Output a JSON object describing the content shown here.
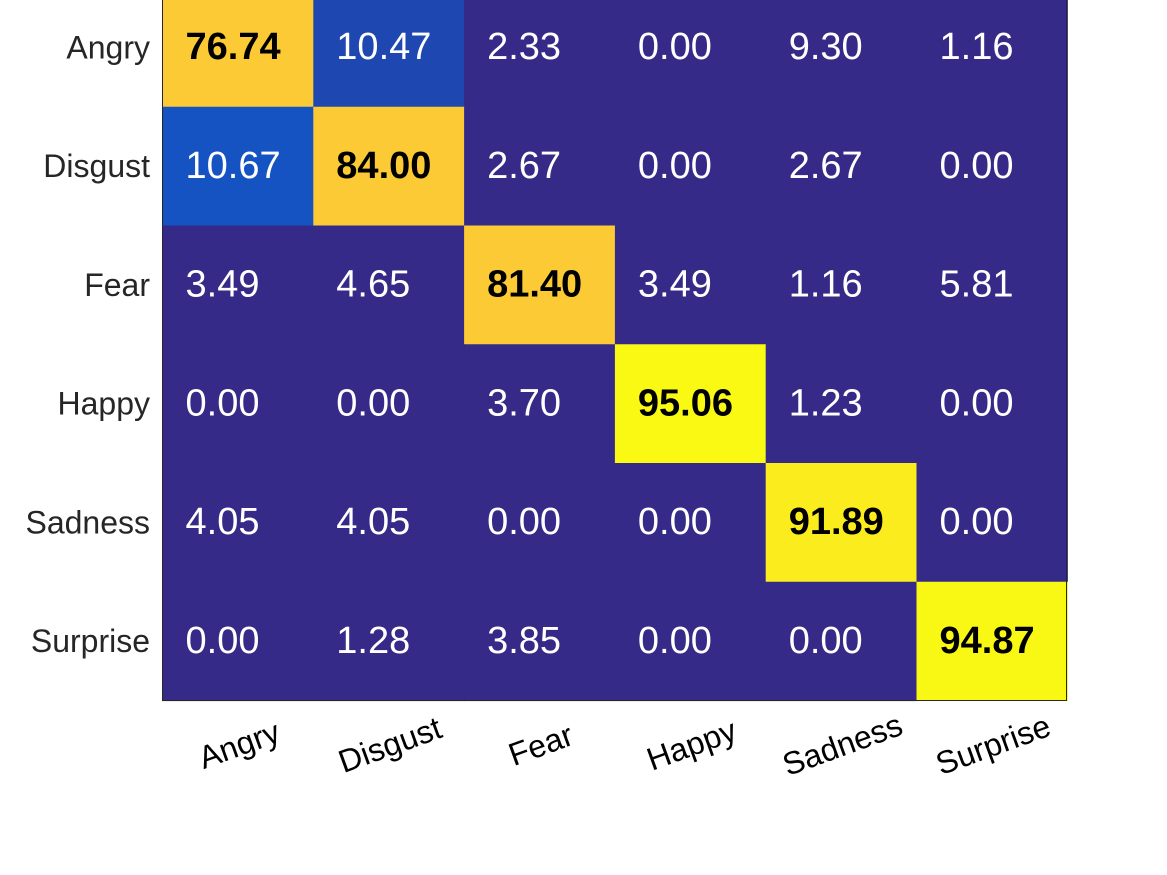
{
  "chart_data": {
    "type": "heatmap",
    "title": "",
    "xlabel": "",
    "ylabel": "",
    "rows": [
      "Angry",
      "Disgust",
      "Fear",
      "Happy",
      "Sadness",
      "Surprise"
    ],
    "columns": [
      "Angry",
      "Disgust",
      "Fear",
      "Happy",
      "Sadness",
      "Surprise"
    ],
    "cells": [
      [
        "76.74",
        "10.47",
        "2.33",
        "0.00",
        "9.30",
        "1.16"
      ],
      [
        "10.67",
        "84.00",
        "2.67",
        "0.00",
        "2.67",
        "0.00"
      ],
      [
        "3.49",
        "4.65",
        "81.40",
        "3.49",
        "1.16",
        "5.81"
      ],
      [
        "0.00",
        "0.00",
        "3.70",
        "95.06",
        "1.23",
        "0.00"
      ],
      [
        "4.05",
        "4.05",
        "0.00",
        "0.00",
        "91.89",
        "0.00"
      ],
      [
        "0.00",
        "1.28",
        "3.85",
        "0.00",
        "0.00",
        "94.87"
      ]
    ],
    "colormap": "parula",
    "colors": {
      "low": "#352a87",
      "mid_blue": "#0567e1",
      "orange": "#fcca35",
      "high": "#f9f914",
      "light_text": "#ffffff",
      "dark_text": "#000000"
    },
    "diagonal_bold": true,
    "grid": false,
    "legend": "none"
  }
}
